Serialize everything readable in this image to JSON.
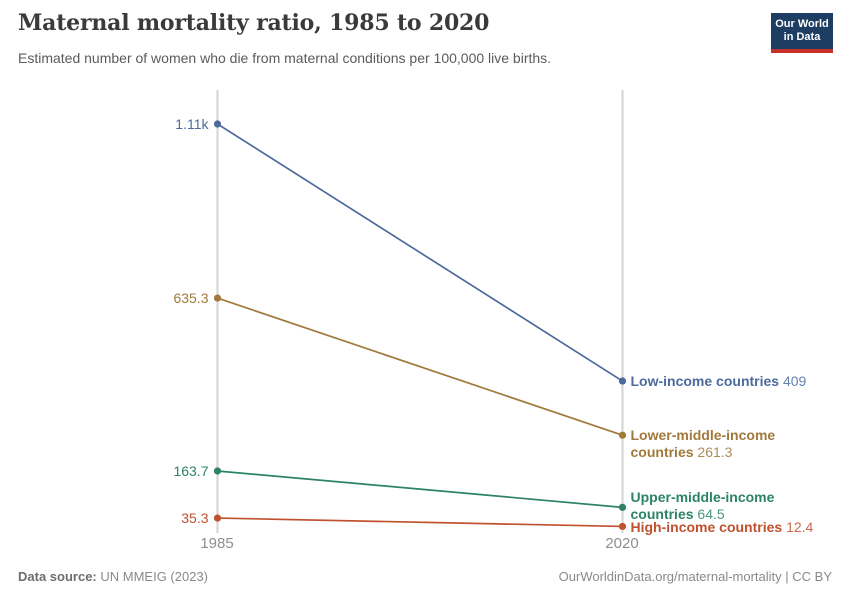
{
  "header": {
    "title": "Maternal mortality ratio, 1985 to 2020",
    "subtitle": "Estimated number of women who die from maternal conditions per 100,000 live births.",
    "logo": {
      "line1": "Our World",
      "line2": "in Data"
    }
  },
  "chart_data": {
    "type": "line",
    "subtype": "slope",
    "title": "Maternal mortality ratio, 1985 to 2020",
    "xlabel": "",
    "ylabel": "Estimated number of women who die from maternal conditions per 100,000 live births",
    "x": [
      1985,
      2020
    ],
    "x_labels": [
      "1985",
      "2020"
    ],
    "ylim": [
      0,
      1110
    ],
    "grid": false,
    "legend_position": "right-of-line-end",
    "series": [
      {
        "name": "Low-income countries",
        "name_lines": [
          "Low-income countries"
        ],
        "values": [
          1110,
          409
        ],
        "start_value_label": "1.11k",
        "end_value_label": "409",
        "color": "#4C6A9C"
      },
      {
        "name": "Lower-middle-income countries",
        "name_lines": [
          "Lower-middle-income",
          "countries"
        ],
        "values": [
          635.3,
          261.3
        ],
        "start_value_label": "635.3",
        "end_value_label": "261.3",
        "color": "#A1793C"
      },
      {
        "name": "Upper-middle-income countries",
        "name_lines": [
          "Upper-middle-income",
          "countries"
        ],
        "values": [
          163.7,
          64.5
        ],
        "start_value_label": "163.7",
        "end_value_label": "64.5",
        "color": "#2C8465"
      },
      {
        "name": "High-income countries",
        "name_lines": [
          "High-income countries"
        ],
        "values": [
          35.3,
          12.4
        ],
        "start_value_label": "35.3",
        "end_value_label": "12.4",
        "color": "#C0512F"
      }
    ]
  },
  "footer": {
    "source_label": "Data source:",
    "source_value": "UN MMEIG (2023)",
    "credit": "OurWorldinData.org/maternal-mortality | CC BY"
  },
  "colors": {
    "axis": "#D3D3D3",
    "year_label": "#8E8E8E",
    "title": "#3A3A3A",
    "subtitle": "#5B5B5B",
    "footer": "#8A8A8A",
    "logo_bg": "#1D3D63",
    "logo_bar": "#C5302B"
  }
}
